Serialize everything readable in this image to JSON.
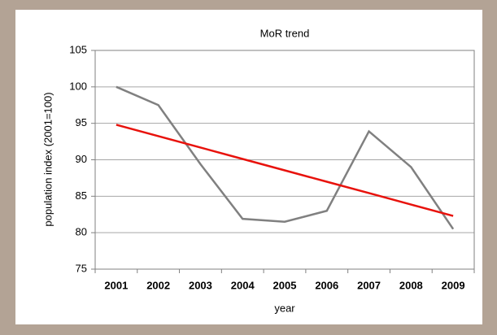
{
  "chart_data": {
    "type": "line",
    "title": "MoR trend",
    "x_label": "year",
    "y_label": "population index (2001=100)",
    "categories": [
      "2001",
      "2002",
      "2003",
      "2004",
      "2005",
      "2006",
      "2007",
      "2008",
      "2009"
    ],
    "series": [
      {
        "color": "#808080",
        "values": [
          100,
          97.5,
          89.4,
          81.9,
          81.5,
          83,
          93.9,
          89,
          80.5
        ]
      },
      {
        "color": "#e8120c",
        "values": [
          94.8,
          93.24,
          91.68,
          90.11,
          88.55,
          86.99,
          85.43,
          83.86,
          82.3
        ]
      }
    ],
    "ylim": [
      75,
      105
    ],
    "yticks": [
      75,
      80,
      85,
      90,
      95,
      100,
      105
    ],
    "grid": true
  }
}
